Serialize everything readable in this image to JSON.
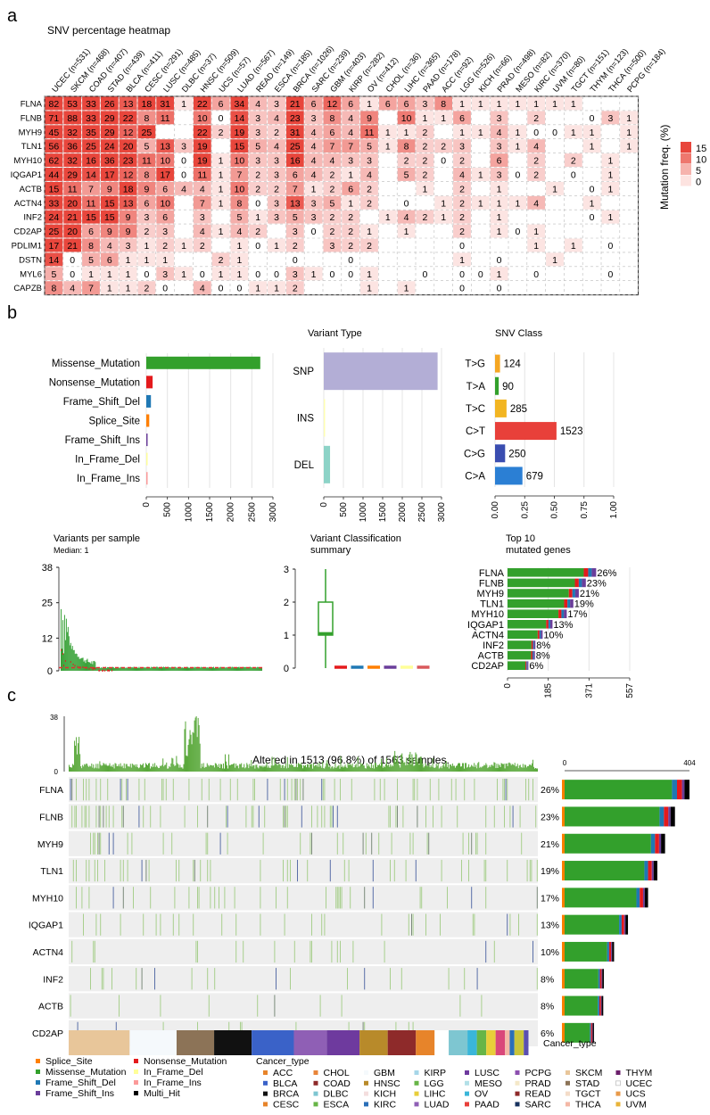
{
  "panels": {
    "a": "a",
    "b": "b",
    "c": "c"
  },
  "heatmap": {
    "title": "SNV percentage heatmap",
    "legend_title": "Mutation freq. (%)",
    "legend_ticks": [
      "15",
      "10",
      "5",
      "0"
    ],
    "columns": [
      "UCEC (n=531)",
      "SKCM (n=468)",
      "COAD (n=407)",
      "STAD (n=439)",
      "BLCA (n=411)",
      "CESC (n=291)",
      "LUSC (n=485)",
      "DLBC (n=37)",
      "HNSC (n=509)",
      "UCS (n=57)",
      "LUAD (n=567)",
      "READ (n=149)",
      "ESCA (n=185)",
      "BRCA (n=1026)",
      "SARC (n=239)",
      "GBM (n=403)",
      "KIRP (n=282)",
      "OV (n=412)",
      "CHOL (n=36)",
      "LIHC (n=365)",
      "PAAD (n=178)",
      "ACC (n=92)",
      "LGG (n=526)",
      "KICH (n=66)",
      "PRAD (n=498)",
      "MESO (n=82)",
      "KIRC (n=370)",
      "UVM (n=80)",
      "TGCT (n=151)",
      "THYM (n=123)",
      "THCA (n=500)",
      "PCPG (n=184)"
    ],
    "rows": [
      "FLNA",
      "FLNB",
      "MYH9",
      "TLN1",
      "MYH10",
      "IQGAP1",
      "ACTB",
      "ACTN4",
      "INF2",
      "CD2AP",
      "PDLIM1",
      "DSTN",
      "MYL6",
      "CAPZB"
    ],
    "values": [
      [
        "82",
        "53",
        "33",
        "26",
        "13",
        "18",
        "31",
        "1",
        "22",
        "6",
        "34",
        "4",
        "3",
        "21",
        "6",
        "12",
        "6",
        "1",
        "6",
        "6",
        "3",
        "8",
        "1",
        "1",
        "1",
        "1",
        "1",
        "1",
        "1",
        "",
        "",
        ""
      ],
      [
        "71",
        "88",
        "33",
        "29",
        "22",
        "8",
        "11",
        "",
        "10",
        "0",
        "14",
        "3",
        "4",
        "23",
        "3",
        "8",
        "4",
        "9",
        "",
        "10",
        "1",
        "1",
        "6",
        "",
        "3",
        "",
        "2",
        "",
        "",
        "0",
        "3",
        "1"
      ],
      [
        "45",
        "32",
        "35",
        "29",
        "12",
        "25",
        "",
        "",
        "22",
        "2",
        "19",
        "3",
        "2",
        "31",
        "4",
        "6",
        "4",
        "11",
        "1",
        "1",
        "2",
        "",
        "1",
        "1",
        "4",
        "1",
        "0",
        "0",
        "1",
        "1",
        "",
        "1"
      ],
      [
        "56",
        "36",
        "25",
        "24",
        "20",
        "5",
        "13",
        "3",
        "19",
        "",
        "15",
        "5",
        "4",
        "25",
        "4",
        "7",
        "7",
        "5",
        "1",
        "8",
        "2",
        "2",
        "3",
        "",
        "3",
        "1",
        "4",
        "",
        "",
        "1",
        "",
        "1"
      ],
      [
        "62",
        "32",
        "16",
        "36",
        "23",
        "11",
        "10",
        "0",
        "19",
        "1",
        "10",
        "3",
        "3",
        "16",
        "4",
        "4",
        "3",
        "3",
        "",
        "2",
        "2",
        "0",
        "2",
        "",
        "6",
        "",
        "2",
        "",
        "2",
        "",
        "1",
        ""
      ],
      [
        "44",
        "29",
        "14",
        "17",
        "12",
        "8",
        "17",
        "0",
        "11",
        "1",
        "7",
        "2",
        "3",
        "6",
        "4",
        "2",
        "1",
        "4",
        "",
        "5",
        "2",
        "",
        "4",
        "1",
        "3",
        "0",
        "2",
        "",
        "0",
        "",
        "1",
        ""
      ],
      [
        "15",
        "11",
        "7",
        "9",
        "18",
        "9",
        "6",
        "4",
        "4",
        "1",
        "10",
        "2",
        "2",
        "7",
        "1",
        "2",
        "6",
        "2",
        "",
        "",
        "1",
        "",
        "2",
        "",
        "1",
        "",
        "",
        "1",
        "",
        "0",
        "1",
        ""
      ],
      [
        "33",
        "20",
        "11",
        "15",
        "13",
        "6",
        "10",
        "",
        "7",
        "1",
        "8",
        "0",
        "3",
        "13",
        "3",
        "5",
        "1",
        "2",
        "",
        "0",
        "",
        "1",
        "2",
        "1",
        "1",
        "1",
        "4",
        "",
        "",
        "1",
        "",
        ""
      ],
      [
        "24",
        "21",
        "15",
        "15",
        "9",
        "3",
        "6",
        "",
        "3",
        "",
        "5",
        "1",
        "3",
        "5",
        "3",
        "2",
        "2",
        "",
        "1",
        "4",
        "2",
        "1",
        "2",
        "",
        "1",
        "",
        "",
        "",
        "",
        "0",
        "1",
        ""
      ],
      [
        "25",
        "20",
        "6",
        "9",
        "9",
        "2",
        "3",
        "",
        "4",
        "1",
        "4",
        "2",
        "",
        "3",
        "0",
        "2",
        "2",
        "1",
        "",
        "1",
        "",
        "",
        "2",
        "",
        "1",
        "0",
        "1",
        "",
        "",
        "",
        "",
        ""
      ],
      [
        "17",
        "21",
        "8",
        "4",
        "3",
        "1",
        "2",
        "1",
        "2",
        "",
        "1",
        "0",
        "1",
        "2",
        "",
        "3",
        "2",
        "2",
        "",
        "",
        "",
        "",
        "0",
        "",
        "",
        "",
        "1",
        "",
        "1",
        "",
        "0",
        ""
      ],
      [
        "14",
        "0",
        "5",
        "6",
        "1",
        "1",
        "1",
        "",
        "",
        "2",
        "1",
        "",
        "",
        "0",
        "",
        "",
        "0",
        "",
        "",
        "",
        "",
        "",
        "1",
        "",
        "0",
        "",
        "",
        "1",
        "",
        "",
        "",
        ""
      ],
      [
        "5",
        "0",
        "1",
        "1",
        "1",
        "0",
        "3",
        "1",
        "0",
        "1",
        "1",
        "0",
        "0",
        "3",
        "1",
        "0",
        "0",
        "1",
        "",
        "",
        "0",
        "",
        "0",
        "0",
        "1",
        "",
        "0",
        "",
        "",
        "",
        "0",
        ""
      ],
      [
        "8",
        "4",
        "7",
        "1",
        "1",
        "2",
        "0",
        "",
        "4",
        "0",
        "0",
        "1",
        "1",
        "2",
        "",
        "",
        "",
        "1",
        "",
        "1",
        "",
        "",
        "0",
        "",
        "0",
        "",
        "",
        "",
        "",
        "",
        "",
        ""
      ]
    ]
  },
  "summary": {
    "variant_class": {
      "categories": [
        "Missense_Mutation",
        "Nonsense_Mutation",
        "Frame_Shift_Del",
        "Splice_Site",
        "Frame_Shift_Ins",
        "In_Frame_Del",
        "In_Frame_Ins"
      ],
      "values": [
        2700,
        150,
        110,
        70,
        30,
        12,
        8
      ],
      "colors": [
        "#33a02c",
        "#e41a1c",
        "#1f78b4",
        "#ff7f00",
        "#6a3d9a",
        "#ffff99",
        "#fb9a99"
      ],
      "ticks": [
        "0",
        "500",
        "1000",
        "1500",
        "2000",
        "2500",
        "3000"
      ],
      "xlim": [
        0,
        3000
      ]
    },
    "variant_type": {
      "title": "Variant Type",
      "categories": [
        "SNP",
        "INS",
        "DEL"
      ],
      "values": [
        2900,
        20,
        160
      ],
      "colors": [
        "#b3aed6",
        "#ffffb3",
        "#8dd3c7"
      ],
      "ticks": [
        "0",
        "500",
        "1000",
        "1500",
        "2000",
        "2500",
        "3000"
      ],
      "xlim": [
        0,
        3000
      ]
    },
    "snv_class": {
      "title": "SNV Class",
      "categories": [
        "T>G",
        "T>A",
        "T>C",
        "C>T",
        "C>G",
        "C>A"
      ],
      "counts": [
        "124",
        "90",
        "285",
        "1523",
        "250",
        "679"
      ],
      "fractions": [
        0.042,
        0.031,
        0.097,
        0.518,
        0.085,
        0.231
      ],
      "colors": [
        "#f5a623",
        "#33a02c",
        "#f2b522",
        "#e8403a",
        "#3a4db0",
        "#2b7fd4"
      ],
      "ticks": [
        "0.00",
        "0.25",
        "0.50",
        "0.75",
        "1.00"
      ],
      "xlim": [
        0,
        1
      ]
    },
    "vps": {
      "title": "Variants per sample",
      "subtitle": "Median: 1",
      "yticks": [
        "38",
        "25",
        "12",
        "0"
      ],
      "ylim": [
        0,
        38
      ]
    },
    "vcs": {
      "title": "Variant Classification",
      "title2": "summary",
      "yticks": [
        "3",
        "2",
        "1",
        "0"
      ],
      "ylim": [
        0,
        3
      ],
      "box": {
        "q1": 1,
        "median": 1.05,
        "q3": 2,
        "max": 3,
        "min": 0
      },
      "colors": [
        "#33a02c",
        "#e41a1c",
        "#1f78b4",
        "#ff7f00",
        "#6a3d9a",
        "#ffff99",
        "#d9595b"
      ]
    },
    "top10": {
      "title": "Top 10",
      "title2": "mutated genes",
      "genes": [
        "FLNA",
        "FLNB",
        "MYH9",
        "TLN1",
        "MYH10",
        "IQGAP1",
        "ACTN4",
        "INF2",
        "ACTB",
        "CD2AP"
      ],
      "pcts": [
        "26%",
        "23%",
        "21%",
        "19%",
        "17%",
        "13%",
        "10%",
        "8%",
        "8%",
        "6%"
      ],
      "values": [
        404,
        357,
        325,
        300,
        270,
        205,
        160,
        127,
        125,
        95
      ],
      "ticks": [
        "0",
        "185",
        "371",
        "557"
      ],
      "xlim": [
        0,
        557
      ]
    }
  },
  "oncoplot": {
    "title": "Altered in 1513 (96.8%) of 1563 samples.",
    "top_ticks": [
      "38",
      "0"
    ],
    "right_ticks": [
      "0",
      "404"
    ],
    "genes": [
      "FLNA",
      "FLNB",
      "MYH9",
      "TLN1",
      "MYH10",
      "IQGAP1",
      "ACTN4",
      "INF2",
      "ACTB",
      "CD2AP"
    ],
    "pcts": [
      "26%",
      "23%",
      "21%",
      "19%",
      "17%",
      "13%",
      "10%",
      "8%",
      "8%",
      "6%"
    ],
    "counts": [
      404,
      357,
      325,
      300,
      270,
      205,
      160,
      127,
      125,
      95
    ],
    "cancer_type_label": "Cancer_type",
    "cancer_blocks": [
      {
        "color": "#e8c69a",
        "w": 0.13
      },
      {
        "color": "#f5f9fc",
        "w": 0.1
      },
      {
        "color": "#8c7357",
        "w": 0.08
      },
      {
        "color": "#111111",
        "w": 0.08
      },
      {
        "color": "#3a62c8",
        "w": 0.09
      },
      {
        "color": "#8f5fb5",
        "w": 0.07
      },
      {
        "color": "#6e3a9e",
        "w": 0.07
      },
      {
        "color": "#b88a2a",
        "w": 0.06
      },
      {
        "color": "#8e2a2a",
        "w": 0.06
      },
      {
        "color": "#e7842a",
        "w": 0.04
      },
      {
        "color": "#ffffff",
        "w": 0.03
      },
      {
        "color": "#7ec6d1",
        "w": 0.04
      },
      {
        "color": "#3ab6d9",
        "w": 0.02
      },
      {
        "color": "#67b547",
        "w": 0.02
      },
      {
        "color": "#e8ce3a",
        "w": 0.02
      },
      {
        "color": "#d9477a",
        "w": 0.02
      },
      {
        "color": "#f4b8a6",
        "w": 0.01
      },
      {
        "color": "#2b6fb8",
        "w": 0.01
      },
      {
        "color": "#c9c43a",
        "w": 0.02
      },
      {
        "color": "#5a4fb0",
        "w": 0.01
      }
    ]
  },
  "legends": {
    "variants": [
      "Splice_Site",
      "Missense_Mutation",
      "Frame_Shift_Del",
      "Frame_Shift_Ins",
      "Nonsense_Mutation",
      "In_Frame_Del",
      "In_Frame_Ins",
      "Multi_Hit"
    ],
    "variant_colors": [
      "#ff7f00",
      "#33a02c",
      "#1f78b4",
      "#6a3d9a",
      "#e41a1c",
      "#ffff99",
      "#fb9a99",
      "#000000"
    ],
    "cancer_title": "Cancer_type",
    "cancer": [
      [
        "ACC",
        "#e7842a"
      ],
      [
        "BLCA",
        "#3a62c8"
      ],
      [
        "BRCA",
        "#111111"
      ],
      [
        "CESC",
        "#e7842a"
      ],
      [
        "CHOL",
        "#e8853a"
      ],
      [
        "COAD",
        "#8e2a2a"
      ],
      [
        "DLBC",
        "#7ec6d1"
      ],
      [
        "ESCA",
        "#67b547"
      ],
      [
        "GBM",
        "#f5f9fc"
      ],
      [
        "HNSC",
        "#b88a2a"
      ],
      [
        "KICH",
        "#f4dede"
      ],
      [
        "KIRC",
        "#2b6fb8"
      ],
      [
        "KIRP",
        "#a6d6e8"
      ],
      [
        "LGG",
        "#67b547"
      ],
      [
        "LIHC",
        "#e8ce3a"
      ],
      [
        "LUAD",
        "#8f5fb5"
      ],
      [
        "LUSC",
        "#6e3a9e"
      ],
      [
        "MESO",
        "#b3e0e8"
      ],
      [
        "OV",
        "#3ab6d9"
      ],
      [
        "PAAD",
        "#e8403a"
      ],
      [
        "PCPG",
        "#8c4faf"
      ],
      [
        "PRAD",
        "#f4e8c8"
      ],
      [
        "READ",
        "#8e2a2a"
      ],
      [
        "SARC",
        "#17325e"
      ],
      [
        "SKCM",
        "#e8c69a"
      ],
      [
        "STAD",
        "#8c7357"
      ],
      [
        "TGCT",
        "#f4dcc8"
      ],
      [
        "THCA",
        "#f4b8a6"
      ],
      [
        "THYM",
        "#6b1f6b"
      ],
      [
        "UCEC",
        "#ffffff"
      ],
      [
        "UCS",
        "#e89a4a"
      ],
      [
        "UVM",
        "#e8b43a"
      ]
    ]
  }
}
